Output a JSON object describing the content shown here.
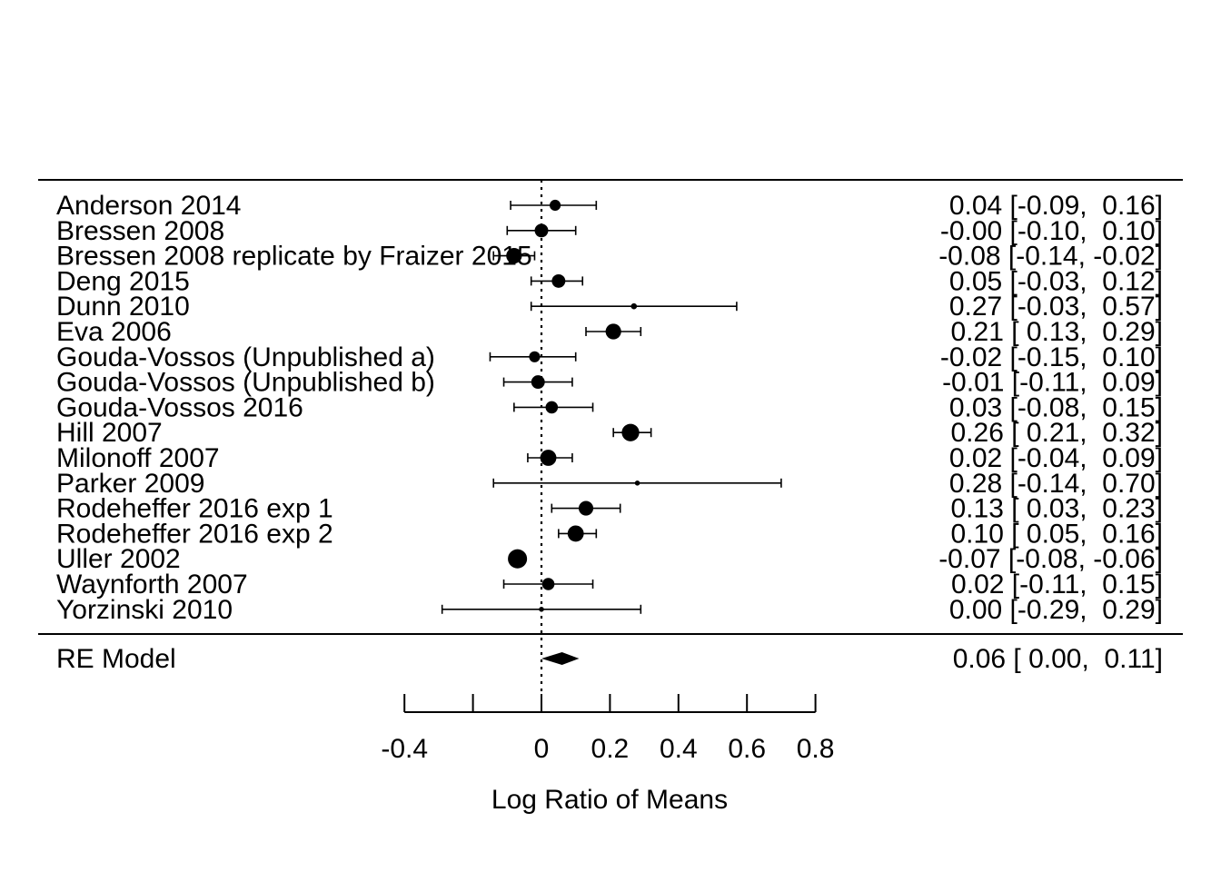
{
  "chart_data": {
    "type": "scatter",
    "subtype": "forest-plot",
    "xlabel": "Log Ratio of Means",
    "xlim": [
      -0.4,
      0.8
    ],
    "x_ticks": [
      -0.4,
      -0.2,
      0,
      0.2,
      0.4,
      0.6,
      0.8
    ],
    "x_tick_labels": [
      "-0.4",
      "",
      "0",
      "0.2",
      "0.4",
      "0.6",
      "0.8"
    ],
    "reference_line": 0,
    "studies": [
      {
        "label": "Anderson 2014",
        "estimate": 0.04,
        "ci_low": -0.09,
        "ci_high": 0.16,
        "ci_text": "0.04 [-0.09,  0.16]",
        "weight": 2
      },
      {
        "label": "Bressen 2008",
        "estimate": -0.0,
        "ci_low": -0.1,
        "ci_high": 0.1,
        "ci_text": "-0.00 [-0.10,  0.10]",
        "weight": 3
      },
      {
        "label": "Bressen 2008 replicate by Fraizer 2015",
        "estimate": -0.08,
        "ci_low": -0.14,
        "ci_high": -0.02,
        "ci_text": "-0.08 [-0.14, -0.02]",
        "weight": 4
      },
      {
        "label": "Deng 2015",
        "estimate": 0.05,
        "ci_low": -0.03,
        "ci_high": 0.12,
        "ci_text": "0.05 [-0.03,  0.12]",
        "weight": 3
      },
      {
        "label": "Dunn 2010",
        "estimate": 0.27,
        "ci_low": -0.03,
        "ci_high": 0.57,
        "ci_text": "0.27 [-0.03,  0.57]",
        "weight": 0.6
      },
      {
        "label": "Eva 2006",
        "estimate": 0.21,
        "ci_low": 0.13,
        "ci_high": 0.29,
        "ci_text": "0.21 [ 0.13,  0.29]",
        "weight": 4
      },
      {
        "label": "Gouda-Vossos (Unpublished a)",
        "estimate": -0.02,
        "ci_low": -0.15,
        "ci_high": 0.1,
        "ci_text": "-0.02 [-0.15,  0.10]",
        "weight": 2
      },
      {
        "label": "Gouda-Vossos (Unpublished b)",
        "estimate": -0.01,
        "ci_low": -0.11,
        "ci_high": 0.09,
        "ci_text": "-0.01 [-0.11,  0.09]",
        "weight": 3
      },
      {
        "label": "Gouda-Vossos 2016",
        "estimate": 0.03,
        "ci_low": -0.08,
        "ci_high": 0.15,
        "ci_text": "0.03 [-0.08,  0.15]",
        "weight": 2.5
      },
      {
        "label": "Hill 2007",
        "estimate": 0.26,
        "ci_low": 0.21,
        "ci_high": 0.32,
        "ci_text": "0.26 [ 0.21,  0.32]",
        "weight": 5
      },
      {
        "label": "Milonoff 2007",
        "estimate": 0.02,
        "ci_low": -0.04,
        "ci_high": 0.09,
        "ci_text": "0.02 [-0.04,  0.09]",
        "weight": 4.3
      },
      {
        "label": "Parker 2009",
        "estimate": 0.28,
        "ci_low": -0.14,
        "ci_high": 0.7,
        "ci_text": "0.28 [-0.14,  0.70]",
        "weight": 0.4
      },
      {
        "label": "Rodeheffer 2016 exp 1",
        "estimate": 0.13,
        "ci_low": 0.03,
        "ci_high": 0.23,
        "ci_text": "0.13 [ 0.03,  0.23]",
        "weight": 3.5
      },
      {
        "label": "Rodeheffer 2016 exp 2",
        "estimate": 0.1,
        "ci_low": 0.05,
        "ci_high": 0.16,
        "ci_text": "0.10 [ 0.05,  0.16]",
        "weight": 4.3
      },
      {
        "label": "Uller 2002",
        "estimate": -0.07,
        "ci_low": -0.08,
        "ci_high": -0.06,
        "ci_text": "-0.07 [-0.08, -0.06]",
        "weight": 6
      },
      {
        "label": "Waynforth 2007",
        "estimate": 0.02,
        "ci_low": -0.11,
        "ci_high": 0.15,
        "ci_text": "0.02 [-0.11,  0.15]",
        "weight": 2.5
      },
      {
        "label": "Yorzinski 2010",
        "estimate": 0.0,
        "ci_low": -0.29,
        "ci_high": 0.29,
        "ci_text": "0.00 [-0.29,  0.29]",
        "weight": 0.4
      }
    ],
    "summary": {
      "label": "RE Model",
      "estimate": 0.06,
      "ci_low": 0.0,
      "ci_high": 0.11,
      "ci_text": "0.06 [ 0.00,  0.11]"
    }
  }
}
